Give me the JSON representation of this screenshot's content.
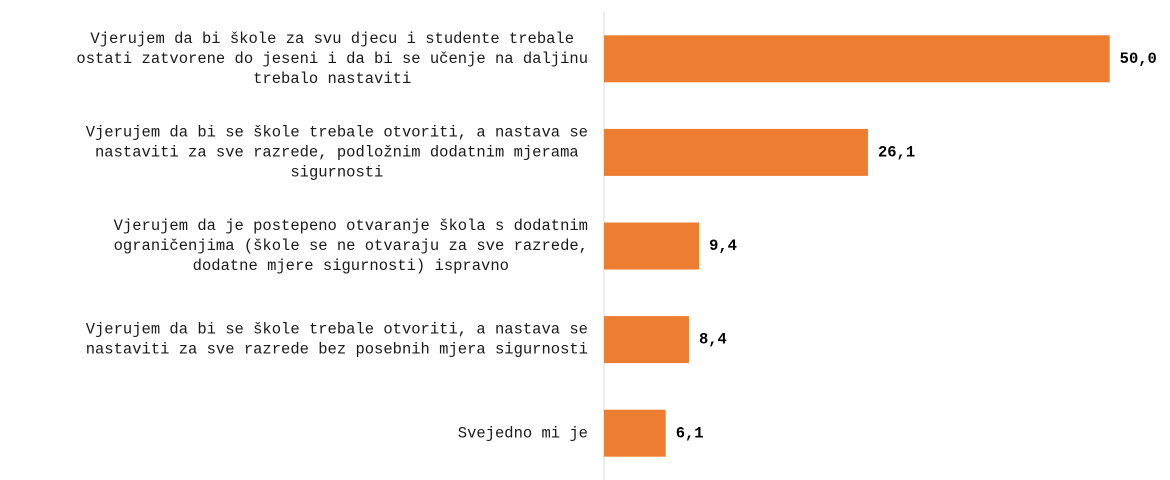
{
  "chart_data": {
    "type": "bar",
    "orientation": "horizontal",
    "categories": [
      [
        "Vjerujem da bi škole za svu djecu i studente trebale",
        "ostati zatvorene do jeseni i da bi se učenje na daljinu",
        "trebalo nastaviti"
      ],
      [
        "Vjerujem da bi se škole trebale otvoriti, a nastava se",
        "nastaviti za sve razrede, podložnim dodatnim mjerama",
        "sigurnosti"
      ],
      [
        "Vjerujem da je postepeno otvaranje škola s dodatnim",
        "ograničenjima (škole se ne otvaraju za sve razrede,",
        "dodatne mjere sigurnosti) ispravno"
      ],
      [
        "Vjerujem da bi se škole trebale otvoriti, a nastava se",
        "nastaviti za sve razrede bez posebnih mjera sigurnosti"
      ],
      [
        "Svejedno mi je"
      ]
    ],
    "values": [
      50.0,
      26.1,
      9.4,
      8.4,
      6.1
    ],
    "value_labels": [
      "50,0",
      "26,1",
      "9,4",
      "8,4",
      "6,1"
    ],
    "xlim": [
      0,
      53
    ],
    "grid": false,
    "legend": "none",
    "bar_color": "#ED7D31",
    "axis_color": "#D9D9D9"
  }
}
